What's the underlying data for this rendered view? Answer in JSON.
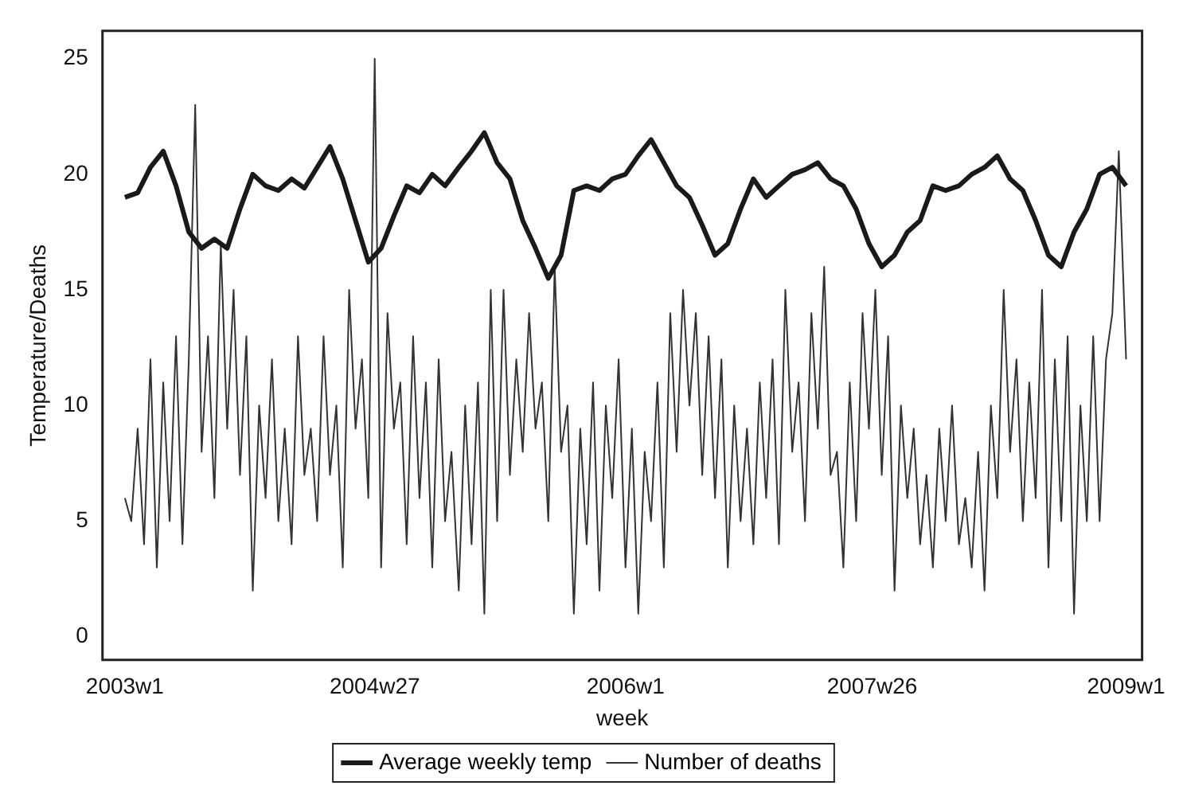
{
  "chart_data": {
    "type": "line",
    "xlabel": "week",
    "ylabel": "Temperature/Deaths",
    "xlim": [
      "2002-11-13",
      "2009-02-05"
    ],
    "ylim": [
      -1,
      26.2
    ],
    "xticks": [
      {
        "value": "2003-01-01",
        "label": "2003w1"
      },
      {
        "value": "2004-07-01",
        "label": "2004w27"
      },
      {
        "value": "2006-01-01",
        "label": "2006w1"
      },
      {
        "value": "2007-06-25",
        "label": "2007w26"
      },
      {
        "value": "2009-01-01",
        "label": "2009w1"
      }
    ],
    "yticks": [
      0,
      5,
      10,
      15,
      20,
      25
    ],
    "grid": false,
    "legend": "bottom",
    "marker": "none",
    "line_style": "solid",
    "series": [
      {
        "name": "Average weekly temp",
        "color": "#1a1a1a",
        "x": [
          "2003-01-01",
          "2003-01-29",
          "2003-02-26",
          "2003-03-26",
          "2003-04-23",
          "2003-05-21",
          "2003-06-18",
          "2003-07-16",
          "2003-08-13",
          "2003-09-10",
          "2003-10-08",
          "2003-11-05",
          "2003-12-03",
          "2004-01-01",
          "2004-01-29",
          "2004-02-26",
          "2004-03-25",
          "2004-04-22",
          "2004-05-20",
          "2004-06-17",
          "2004-07-15",
          "2004-08-12",
          "2004-09-09",
          "2004-10-07",
          "2004-11-04",
          "2004-12-02",
          "2005-01-01",
          "2005-01-29",
          "2005-02-26",
          "2005-03-26",
          "2005-04-23",
          "2005-05-21",
          "2005-06-18",
          "2005-07-16",
          "2005-08-13",
          "2005-09-10",
          "2005-10-08",
          "2005-11-05",
          "2005-12-03",
          "2006-01-01",
          "2006-01-29",
          "2006-02-26",
          "2006-03-26",
          "2006-04-23",
          "2006-05-21",
          "2006-06-18",
          "2006-07-16",
          "2006-08-13",
          "2006-09-10",
          "2006-10-08",
          "2006-11-05",
          "2006-12-03",
          "2007-01-01",
          "2007-01-29",
          "2007-02-26",
          "2007-03-26",
          "2007-04-23",
          "2007-05-21",
          "2007-06-18",
          "2007-07-16",
          "2007-08-13",
          "2007-09-10",
          "2007-10-08",
          "2007-11-05",
          "2007-12-03",
          "2008-01-01",
          "2008-01-29",
          "2008-02-26",
          "2008-03-25",
          "2008-04-22",
          "2008-05-20",
          "2008-06-17",
          "2008-07-15",
          "2008-08-12",
          "2008-09-09",
          "2008-10-07",
          "2008-11-04",
          "2008-12-02",
          "2009-01-01"
        ],
        "values": [
          19.0,
          19.2,
          20.3,
          21.0,
          19.5,
          17.5,
          16.8,
          17.2,
          16.8,
          18.5,
          20.0,
          19.5,
          19.3,
          19.8,
          19.4,
          20.3,
          21.2,
          19.8,
          18.0,
          16.2,
          16.8,
          18.2,
          19.5,
          19.2,
          20.0,
          19.5,
          20.3,
          21.0,
          21.8,
          20.5,
          19.8,
          18.0,
          16.8,
          15.5,
          16.5,
          19.3,
          19.5,
          19.3,
          19.8,
          20.0,
          20.8,
          21.5,
          20.5,
          19.5,
          19.0,
          17.8,
          16.5,
          17.0,
          18.5,
          19.8,
          19.0,
          19.5,
          20.0,
          20.2,
          20.5,
          19.8,
          19.5,
          18.5,
          17.0,
          16.0,
          16.5,
          17.5,
          18.0,
          19.5,
          19.3,
          19.5,
          20.0,
          20.3,
          20.8,
          19.8,
          19.3,
          18.0,
          16.5,
          16.0,
          17.5,
          18.5,
          20.0,
          20.3,
          19.5
        ]
      },
      {
        "name": "Number of deaths",
        "color": "#333333",
        "x": [
          "2003-01-01",
          "2003-01-15",
          "2003-01-29",
          "2003-02-12",
          "2003-02-26",
          "2003-03-12",
          "2003-03-26",
          "2003-04-09",
          "2003-04-23",
          "2003-05-07",
          "2003-05-21",
          "2003-06-04",
          "2003-06-18",
          "2003-07-02",
          "2003-07-16",
          "2003-07-30",
          "2003-08-13",
          "2003-08-27",
          "2003-09-10",
          "2003-09-24",
          "2003-10-08",
          "2003-10-22",
          "2003-11-05",
          "2003-11-19",
          "2003-12-03",
          "2003-12-17",
          "2004-01-01",
          "2004-01-15",
          "2004-01-29",
          "2004-02-12",
          "2004-02-26",
          "2004-03-11",
          "2004-03-25",
          "2004-04-08",
          "2004-04-22",
          "2004-05-06",
          "2004-05-20",
          "2004-06-03",
          "2004-06-17",
          "2004-07-01",
          "2004-07-15",
          "2004-07-29",
          "2004-08-12",
          "2004-08-26",
          "2004-09-09",
          "2004-09-23",
          "2004-10-07",
          "2004-10-21",
          "2004-11-04",
          "2004-11-18",
          "2004-12-02",
          "2004-12-16",
          "2005-01-01",
          "2005-01-15",
          "2005-01-29",
          "2005-02-12",
          "2005-02-26",
          "2005-03-12",
          "2005-03-26",
          "2005-04-09",
          "2005-04-23",
          "2005-05-07",
          "2005-05-21",
          "2005-06-04",
          "2005-06-18",
          "2005-07-02",
          "2005-07-16",
          "2005-07-30",
          "2005-08-13",
          "2005-08-27",
          "2005-09-10",
          "2005-09-24",
          "2005-10-08",
          "2005-10-22",
          "2005-11-05",
          "2005-11-19",
          "2005-12-03",
          "2005-12-17",
          "2006-01-01",
          "2006-01-15",
          "2006-01-29",
          "2006-02-12",
          "2006-02-26",
          "2006-03-12",
          "2006-03-26",
          "2006-04-09",
          "2006-04-23",
          "2006-05-07",
          "2006-05-21",
          "2006-06-04",
          "2006-06-18",
          "2006-07-02",
          "2006-07-16",
          "2006-07-30",
          "2006-08-13",
          "2006-08-27",
          "2006-09-10",
          "2006-09-24",
          "2006-10-08",
          "2006-10-22",
          "2006-11-05",
          "2006-11-19",
          "2006-12-03",
          "2006-12-17",
          "2007-01-01",
          "2007-01-15",
          "2007-01-29",
          "2007-02-12",
          "2007-02-26",
          "2007-03-12",
          "2007-03-26",
          "2007-04-09",
          "2007-04-23",
          "2007-05-07",
          "2007-05-21",
          "2007-06-04",
          "2007-06-18",
          "2007-07-02",
          "2007-07-16",
          "2007-07-30",
          "2007-08-13",
          "2007-08-27",
          "2007-09-10",
          "2007-09-24",
          "2007-10-08",
          "2007-10-22",
          "2007-11-05",
          "2007-11-19",
          "2007-12-03",
          "2007-12-17",
          "2008-01-01",
          "2008-01-15",
          "2008-01-29",
          "2008-02-12",
          "2008-02-26",
          "2008-03-11",
          "2008-03-25",
          "2008-04-08",
          "2008-04-22",
          "2008-05-06",
          "2008-05-20",
          "2008-06-03",
          "2008-06-17",
          "2008-07-01",
          "2008-07-15",
          "2008-07-29",
          "2008-08-12",
          "2008-08-26",
          "2008-09-09",
          "2008-09-23",
          "2008-10-07",
          "2008-10-21",
          "2008-11-04",
          "2008-11-18",
          "2008-12-02",
          "2008-12-16",
          "2009-01-01"
        ],
        "values": [
          6,
          5,
          9,
          4,
          12,
          3,
          11,
          5,
          13,
          4,
          12,
          23,
          8,
          13,
          6,
          17,
          9,
          15,
          7,
          13,
          2,
          10,
          6,
          12,
          5,
          9,
          4,
          13,
          7,
          9,
          5,
          13,
          7,
          10,
          3,
          15,
          9,
          12,
          6,
          25,
          3,
          14,
          9,
          11,
          4,
          13,
          6,
          11,
          3,
          12,
          5,
          8,
          2,
          10,
          4,
          11,
          1,
          15,
          5,
          15,
          7,
          12,
          8,
          14,
          9,
          11,
          5,
          16,
          8,
          10,
          1,
          9,
          4,
          11,
          2,
          10,
          6,
          12,
          3,
          9,
          1,
          8,
          5,
          11,
          3,
          14,
          8,
          15,
          10,
          14,
          7,
          13,
          6,
          12,
          3,
          10,
          5,
          9,
          4,
          11,
          6,
          12,
          4,
          15,
          8,
          11,
          5,
          14,
          9,
          16,
          7,
          8,
          3,
          11,
          5,
          14,
          9,
          15,
          7,
          13,
          2,
          10,
          6,
          9,
          4,
          7,
          3,
          9,
          5,
          10,
          4,
          6,
          3,
          8,
          2,
          10,
          6,
          15,
          8,
          12,
          5,
          11,
          6,
          15,
          3,
          12,
          5,
          13,
          1,
          10,
          5,
          13,
          5,
          12,
          14,
          21,
          12
        ]
      }
    ]
  }
}
